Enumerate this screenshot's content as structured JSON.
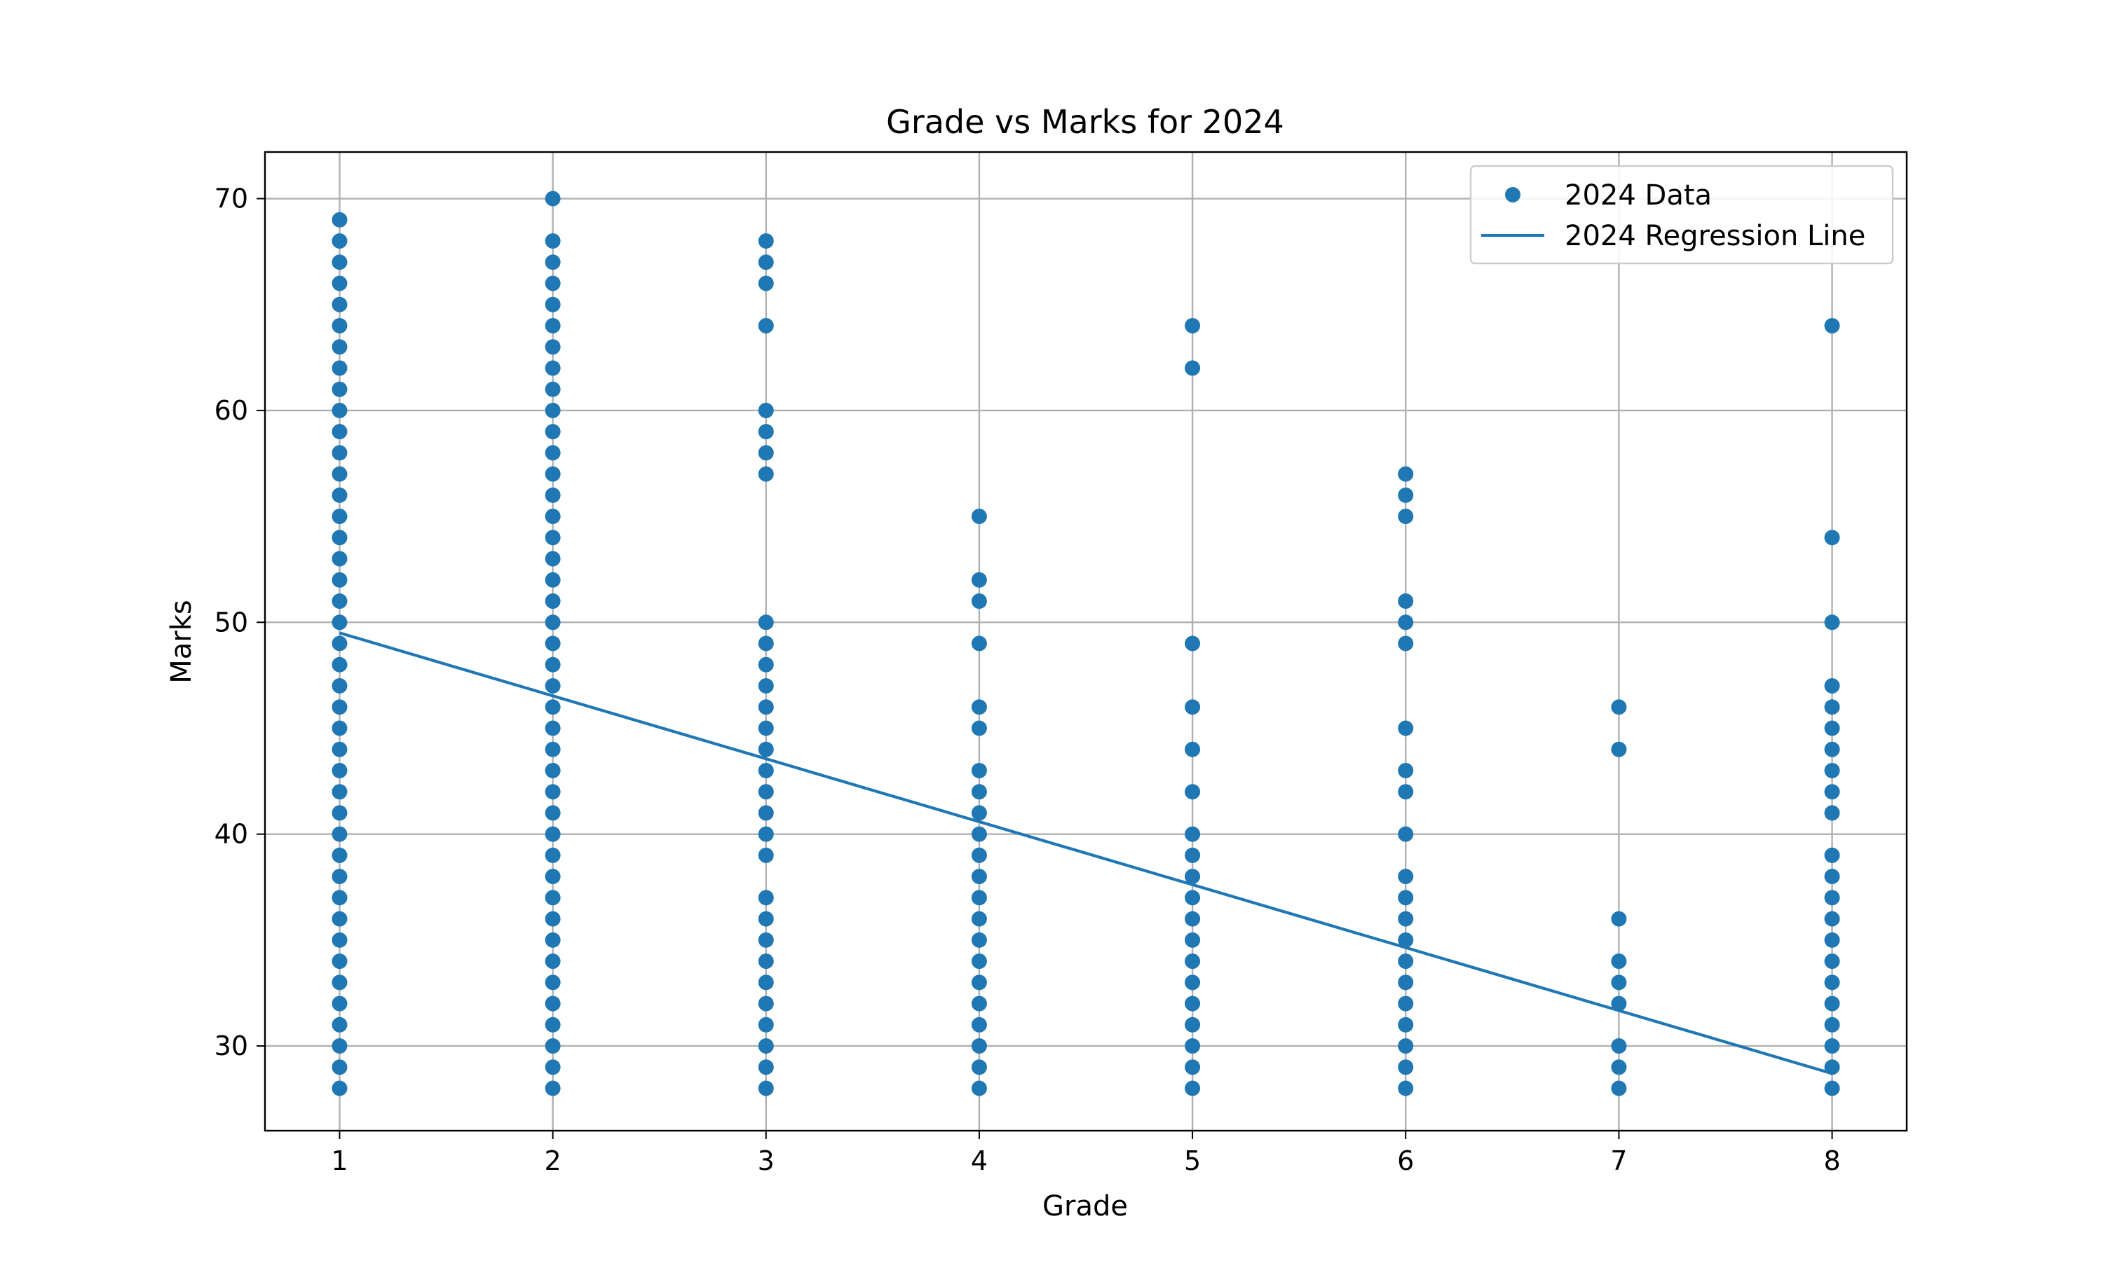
{
  "chart_data": {
    "type": "scatter",
    "title": "Grade vs Marks for 2024",
    "xlabel": "Grade",
    "ylabel": "Marks",
    "xlim": [
      0.65,
      8.35
    ],
    "ylim": [
      26,
      72.2
    ],
    "xticks": [
      1,
      2,
      3,
      4,
      5,
      6,
      7,
      8
    ],
    "yticks": [
      30,
      40,
      50,
      60,
      70
    ],
    "grid": true,
    "legend_position": "top-right",
    "color": "#1f77b4",
    "series": [
      {
        "name": "2024 Data",
        "kind": "scatter",
        "points": [
          {
            "x": 1,
            "marks": [
              28,
              29,
              30,
              31,
              32,
              33,
              34,
              35,
              36,
              37,
              38,
              39,
              40,
              41,
              42,
              43,
              44,
              45,
              46,
              47,
              48,
              49,
              50,
              51,
              52,
              53,
              54,
              55,
              56,
              57,
              58,
              59,
              60,
              61,
              62,
              63,
              64,
              65,
              66,
              67,
              68,
              69
            ]
          },
          {
            "x": 2,
            "marks": [
              28,
              29,
              30,
              31,
              32,
              33,
              34,
              35,
              36,
              37,
              38,
              39,
              40,
              41,
              42,
              43,
              44,
              45,
              46,
              47,
              48,
              49,
              50,
              51,
              52,
              53,
              54,
              55,
              56,
              57,
              58,
              59,
              60,
              61,
              62,
              63,
              64,
              65,
              66,
              67,
              68,
              70
            ]
          },
          {
            "x": 3,
            "marks": [
              28,
              29,
              30,
              31,
              32,
              33,
              34,
              35,
              36,
              37,
              39,
              40,
              41,
              42,
              43,
              44,
              45,
              46,
              47,
              48,
              49,
              50,
              57,
              58,
              59,
              60,
              64,
              66,
              67,
              68
            ]
          },
          {
            "x": 4,
            "marks": [
              28,
              29,
              30,
              31,
              32,
              33,
              34,
              35,
              36,
              37,
              38,
              39,
              40,
              41,
              42,
              43,
              45,
              46,
              49,
              51,
              52,
              55
            ]
          },
          {
            "x": 5,
            "marks": [
              28,
              29,
              30,
              31,
              32,
              33,
              34,
              35,
              36,
              37,
              38,
              39,
              40,
              42,
              44,
              46,
              49,
              62,
              64
            ]
          },
          {
            "x": 6,
            "marks": [
              28,
              29,
              30,
              31,
              32,
              33,
              34,
              35,
              36,
              37,
              38,
              40,
              42,
              43,
              45,
              49,
              50,
              51,
              55,
              56,
              57
            ]
          },
          {
            "x": 7,
            "marks": [
              28,
              29,
              30,
              32,
              33,
              34,
              36,
              44,
              46
            ]
          },
          {
            "x": 8,
            "marks": [
              28,
              29,
              30,
              31,
              32,
              33,
              34,
              35,
              36,
              37,
              38,
              39,
              41,
              42,
              43,
              44,
              45,
              46,
              47,
              50,
              54,
              64
            ]
          }
        ]
      },
      {
        "name": "2024 Regression Line",
        "kind": "line",
        "x": [
          1,
          8
        ],
        "y": [
          49.5,
          28.7
        ]
      }
    ]
  }
}
